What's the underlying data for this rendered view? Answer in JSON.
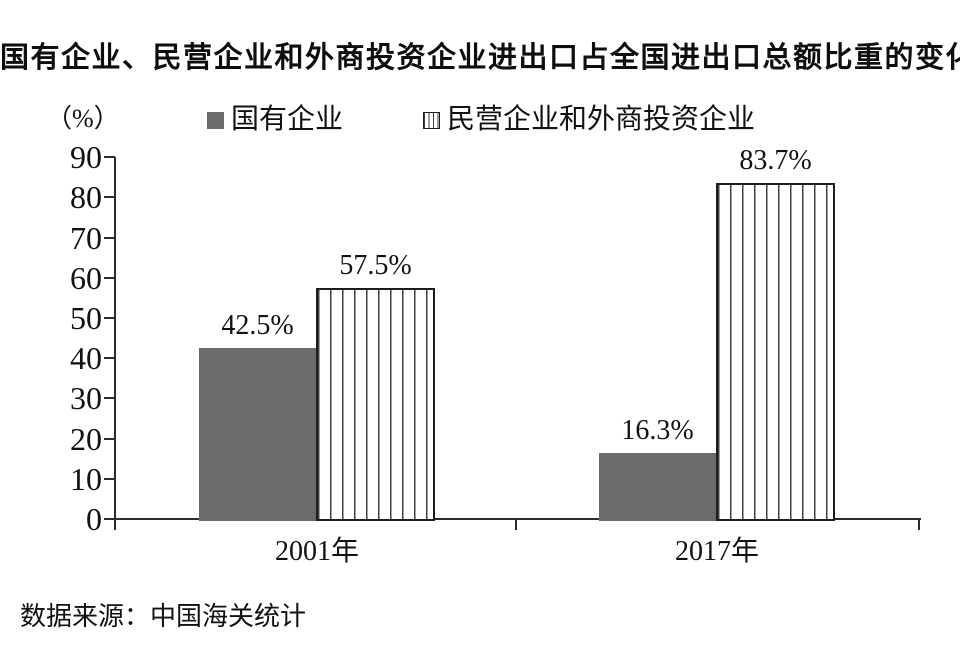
{
  "title": "国有企业、民营企业和外商投资企业进出口占全国进出口总额比重的变化",
  "source": "数据来源：中国海关统计",
  "legend": {
    "items": [
      {
        "label": "国有企业",
        "swatch": "solid"
      },
      {
        "label": "民营企业和外商投资企业",
        "swatch": "striped"
      }
    ]
  },
  "chart_data": {
    "type": "bar",
    "title": "国有企业、民营企业和外商投资企业进出口占全国进出口总额比重的变化",
    "categories": [
      "2001年",
      "2017年"
    ],
    "series": [
      {
        "name": "国有企业",
        "pattern": "solid",
        "values": [
          42.5,
          16.3
        ],
        "data_labels": [
          "42.5%",
          "16.3%"
        ]
      },
      {
        "name": "民营企业和外商投资企业",
        "pattern": "striped",
        "values": [
          57.5,
          83.7
        ],
        "data_labels": [
          "57.5%",
          "83.7%"
        ]
      }
    ],
    "ylabel": "（%）",
    "ylim": [
      0,
      90
    ],
    "yticks": [
      0,
      10,
      20,
      30,
      40,
      50,
      60,
      70,
      80,
      90
    ],
    "grid": false,
    "legend_position": "top"
  },
  "colors": {
    "bar_solid": "#6b6b6e",
    "stripe_line": "#3f3f42",
    "bar_border": "#1e1e20",
    "axis": "#2b2b2e",
    "text": "#111113"
  }
}
